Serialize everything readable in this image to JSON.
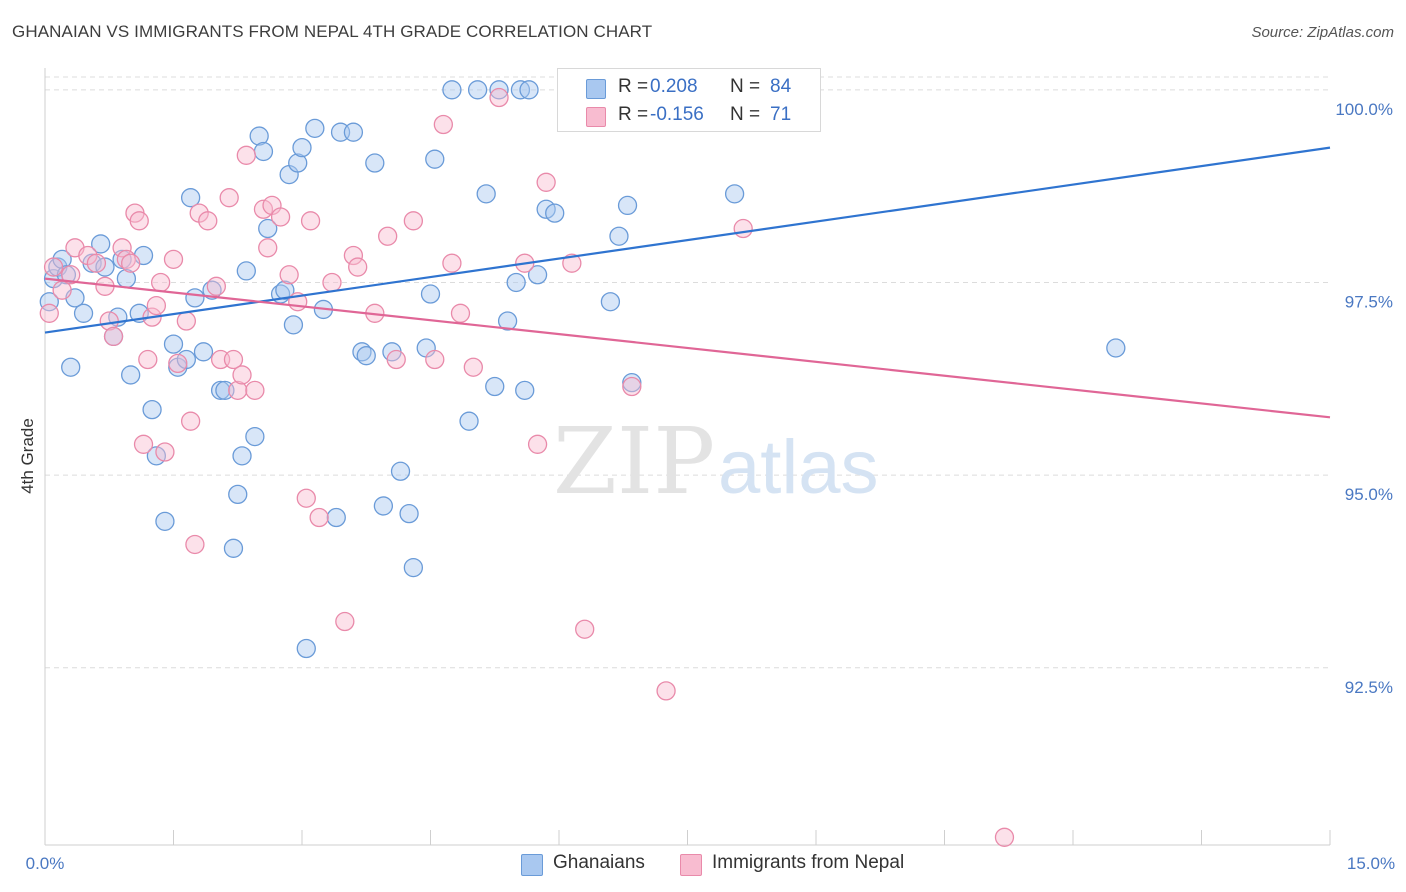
{
  "header": {
    "title": "GHANAIAN VS IMMIGRANTS FROM NEPAL 4TH GRADE CORRELATION CHART",
    "source": "Source: ZipAtlas.com"
  },
  "watermark": {
    "zip": "ZIP",
    "atlas": "atlas"
  },
  "legend_top": {
    "rows": [
      {
        "r_label": "R =",
        "r_value": "0.208",
        "n_label": "N =",
        "n_value": "84"
      },
      {
        "r_label": "R =",
        "r_value": "-0.156",
        "n_label": "N =",
        "n_value": "71"
      }
    ]
  },
  "legend_bottom": {
    "items": [
      "Ghanaians",
      "Immigrants from Nepal"
    ]
  },
  "colors": {
    "blue_fill": "#a9c8f0",
    "blue_stroke": "#6a9bd8",
    "blue_line": "#2f74d0",
    "pink_fill": "#f8bcd0",
    "pink_stroke": "#e98aaa",
    "pink_line": "#e06696",
    "grid": "#dcdcdc",
    "axis_text": "#4a78c2"
  },
  "chart_data": {
    "type": "scatter",
    "title": "GHANAIAN VS IMMIGRANTS FROM NEPAL 4TH GRADE CORRELATION CHART",
    "xlabel": "",
    "ylabel": "4th Grade",
    "xlim": [
      0,
      15
    ],
    "ylim": [
      90.2,
      100.4
    ],
    "x_tick_labels": [
      "0.0%",
      "15.0%"
    ],
    "y_ticks": [
      92.5,
      95.0,
      97.5,
      100.0
    ],
    "y_tick_labels": [
      "92.5%",
      "95.0%",
      "97.5%",
      "100.0%"
    ],
    "grid": true,
    "legend_position": "top-center",
    "series": [
      {
        "name": "Ghanaians",
        "R": 0.208,
        "N": 84,
        "trend": {
          "x": [
            0,
            15
          ],
          "y": [
            96.85,
            99.25
          ]
        },
        "points": [
          [
            0.05,
            97.25
          ],
          [
            0.1,
            97.55
          ],
          [
            0.15,
            97.7
          ],
          [
            0.2,
            97.8
          ],
          [
            0.25,
            97.6
          ],
          [
            0.3,
            96.4
          ],
          [
            0.35,
            97.3
          ],
          [
            0.45,
            97.1
          ],
          [
            0.55,
            97.75
          ],
          [
            0.65,
            98.0
          ],
          [
            0.7,
            97.7
          ],
          [
            0.8,
            96.8
          ],
          [
            0.85,
            97.05
          ],
          [
            0.9,
            97.8
          ],
          [
            0.95,
            97.55
          ],
          [
            1.0,
            96.3
          ],
          [
            1.1,
            97.1
          ],
          [
            1.15,
            97.85
          ],
          [
            1.25,
            95.85
          ],
          [
            1.3,
            95.25
          ],
          [
            1.4,
            94.4
          ],
          [
            1.5,
            96.7
          ],
          [
            1.55,
            96.4
          ],
          [
            1.65,
            96.5
          ],
          [
            1.7,
            98.6
          ],
          [
            1.75,
            97.3
          ],
          [
            1.85,
            96.6
          ],
          [
            1.95,
            97.4
          ],
          [
            2.05,
            96.1
          ],
          [
            2.1,
            96.1
          ],
          [
            2.2,
            94.05
          ],
          [
            2.25,
            94.75
          ],
          [
            2.3,
            95.25
          ],
          [
            2.35,
            97.65
          ],
          [
            2.45,
            95.5
          ],
          [
            2.5,
            99.4
          ],
          [
            2.55,
            99.2
          ],
          [
            2.6,
            98.2
          ],
          [
            2.75,
            97.35
          ],
          [
            2.8,
            97.4
          ],
          [
            2.85,
            98.9
          ],
          [
            2.9,
            96.95
          ],
          [
            2.95,
            99.05
          ],
          [
            3.0,
            99.25
          ],
          [
            3.05,
            92.75
          ],
          [
            3.15,
            99.5
          ],
          [
            3.25,
            97.15
          ],
          [
            3.4,
            94.45
          ],
          [
            3.45,
            99.45
          ],
          [
            3.6,
            99.45
          ],
          [
            3.7,
            96.6
          ],
          [
            3.75,
            96.55
          ],
          [
            3.85,
            99.05
          ],
          [
            3.95,
            94.6
          ],
          [
            4.05,
            96.6
          ],
          [
            4.15,
            95.05
          ],
          [
            4.25,
            94.5
          ],
          [
            4.3,
            93.8
          ],
          [
            4.45,
            96.65
          ],
          [
            4.5,
            97.35
          ],
          [
            4.55,
            99.1
          ],
          [
            4.75,
            100.0
          ],
          [
            4.95,
            95.7
          ],
          [
            5.05,
            100.0
          ],
          [
            5.15,
            98.65
          ],
          [
            5.25,
            96.15
          ],
          [
            5.3,
            100.0
          ],
          [
            5.4,
            97.0
          ],
          [
            5.5,
            97.5
          ],
          [
            5.55,
            100.0
          ],
          [
            5.6,
            96.1
          ],
          [
            5.65,
            100.0
          ],
          [
            5.75,
            97.6
          ],
          [
            5.85,
            98.45
          ],
          [
            5.95,
            98.4
          ],
          [
            6.25,
            99.7
          ],
          [
            6.6,
            97.25
          ],
          [
            6.7,
            98.1
          ],
          [
            6.8,
            98.5
          ],
          [
            6.85,
            96.2
          ],
          [
            7.05,
            100.0
          ],
          [
            7.2,
            100.0
          ],
          [
            8.05,
            98.65
          ],
          [
            12.5,
            96.65
          ]
        ]
      },
      {
        "name": "Immigrants from Nepal",
        "R": -0.156,
        "N": 71,
        "trend": {
          "x": [
            0,
            15
          ],
          "y": [
            97.55,
            95.75
          ]
        },
        "points": [
          [
            0.05,
            97.1
          ],
          [
            0.1,
            97.7
          ],
          [
            0.2,
            97.4
          ],
          [
            0.3,
            97.6
          ],
          [
            0.35,
            97.95
          ],
          [
            0.5,
            97.85
          ],
          [
            0.6,
            97.75
          ],
          [
            0.7,
            97.45
          ],
          [
            0.75,
            97.0
          ],
          [
            0.8,
            96.8
          ],
          [
            0.9,
            97.95
          ],
          [
            0.95,
            97.8
          ],
          [
            1.0,
            97.75
          ],
          [
            1.05,
            98.4
          ],
          [
            1.1,
            98.3
          ],
          [
            1.15,
            95.4
          ],
          [
            1.2,
            96.5
          ],
          [
            1.25,
            97.05
          ],
          [
            1.3,
            97.2
          ],
          [
            1.35,
            97.5
          ],
          [
            1.4,
            95.3
          ],
          [
            1.5,
            97.8
          ],
          [
            1.55,
            96.45
          ],
          [
            1.65,
            97.0
          ],
          [
            1.7,
            95.7
          ],
          [
            1.75,
            94.1
          ],
          [
            1.8,
            98.4
          ],
          [
            1.9,
            98.3
          ],
          [
            2.0,
            97.45
          ],
          [
            2.05,
            96.5
          ],
          [
            2.15,
            98.6
          ],
          [
            2.2,
            96.5
          ],
          [
            2.25,
            96.1
          ],
          [
            2.3,
            96.3
          ],
          [
            2.35,
            99.15
          ],
          [
            2.45,
            96.1
          ],
          [
            2.55,
            98.45
          ],
          [
            2.6,
            97.95
          ],
          [
            2.65,
            98.5
          ],
          [
            2.75,
            98.35
          ],
          [
            2.85,
            97.6
          ],
          [
            2.95,
            97.25
          ],
          [
            3.05,
            94.7
          ],
          [
            3.1,
            98.3
          ],
          [
            3.2,
            94.45
          ],
          [
            3.35,
            97.5
          ],
          [
            3.5,
            93.1
          ],
          [
            3.6,
            97.85
          ],
          [
            3.65,
            97.7
          ],
          [
            3.85,
            97.1
          ],
          [
            4.0,
            98.1
          ],
          [
            4.1,
            96.5
          ],
          [
            4.3,
            98.3
          ],
          [
            4.55,
            96.5
          ],
          [
            4.65,
            99.55
          ],
          [
            4.75,
            97.75
          ],
          [
            4.85,
            97.1
          ],
          [
            5.0,
            96.4
          ],
          [
            5.3,
            99.9
          ],
          [
            5.6,
            97.75
          ],
          [
            5.75,
            95.4
          ],
          [
            5.85,
            98.8
          ],
          [
            6.15,
            97.75
          ],
          [
            6.3,
            93.0
          ],
          [
            6.5,
            100.0
          ],
          [
            6.75,
            99.75
          ],
          [
            6.85,
            96.15
          ],
          [
            7.25,
            92.2
          ],
          [
            7.5,
            100.0
          ],
          [
            8.15,
            98.2
          ],
          [
            11.2,
            90.3
          ]
        ]
      }
    ]
  }
}
